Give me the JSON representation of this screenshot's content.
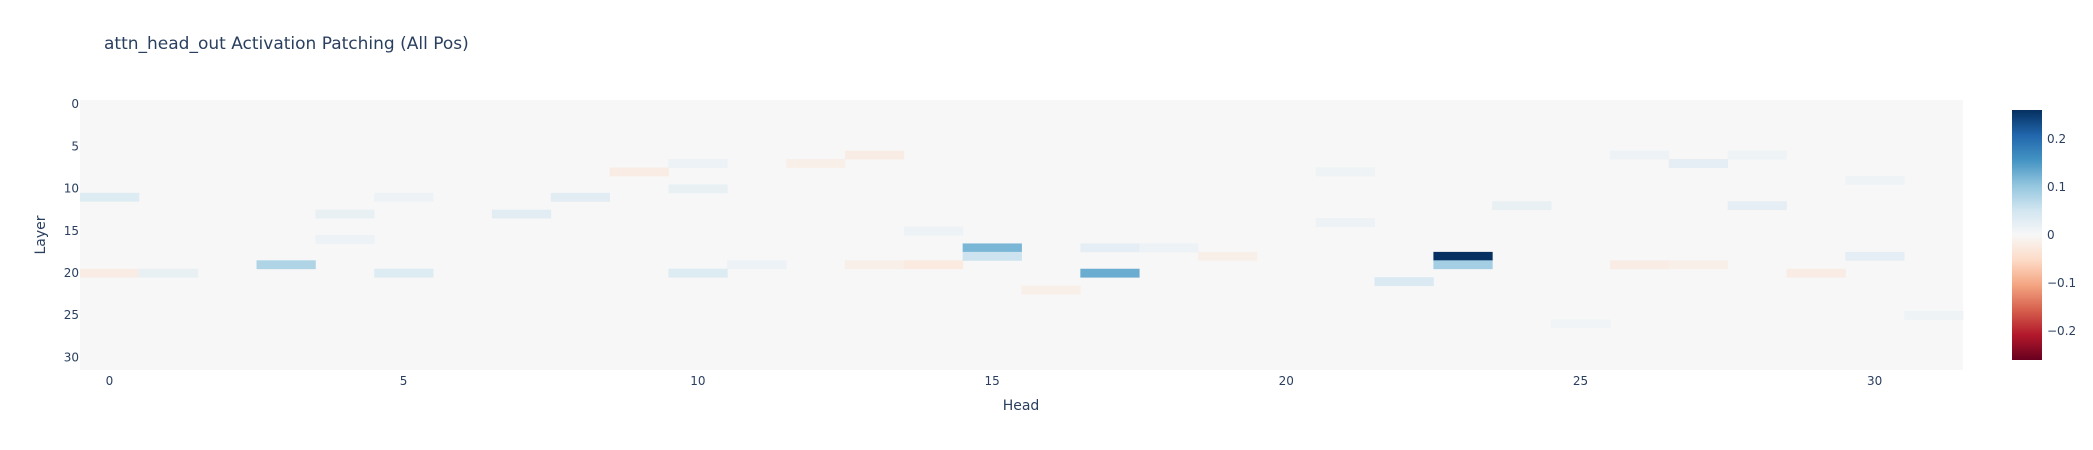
{
  "chart_data": {
    "type": "heatmap",
    "title": "attn_head_out Activation Patching (All Pos)",
    "xlabel": "Head",
    "ylabel": "Layer",
    "x_range": [
      -0.5,
      31.5
    ],
    "y_range": [
      -0.5,
      31.5
    ],
    "y_reversed": true,
    "x_ticks": [
      0,
      5,
      10,
      15,
      20,
      25,
      30
    ],
    "y_ticks": [
      0,
      5,
      10,
      15,
      20,
      25,
      30
    ],
    "colorscale": "RdBu",
    "zmin": -0.26,
    "zmax": 0.26,
    "colorbar_ticks": [
      0.2,
      0.1,
      0,
      -0.1,
      -0.2
    ],
    "colorbar_tick_labels": [
      "0.2",
      "0.1",
      "0",
      "−0.1",
      "−0.2"
    ],
    "grid": false,
    "n_layers": 32,
    "n_heads": 32,
    "cells": [
      {
        "layer": 11,
        "head": 0,
        "value": 0.035
      },
      {
        "layer": 20,
        "head": 0,
        "value": -0.02
      },
      {
        "layer": 20,
        "head": 1,
        "value": 0.02
      },
      {
        "layer": 19,
        "head": 3,
        "value": 0.08
      },
      {
        "layer": 13,
        "head": 4,
        "value": 0.02
      },
      {
        "layer": 16,
        "head": 4,
        "value": 0.015
      },
      {
        "layer": 11,
        "head": 5,
        "value": 0.015
      },
      {
        "layer": 20,
        "head": 5,
        "value": 0.035
      },
      {
        "layer": 13,
        "head": 7,
        "value": 0.03
      },
      {
        "layer": 11,
        "head": 8,
        "value": 0.03
      },
      {
        "layer": 8,
        "head": 9,
        "value": -0.02
      },
      {
        "layer": 20,
        "head": 10,
        "value": 0.035
      },
      {
        "layer": 10,
        "head": 10,
        "value": 0.02
      },
      {
        "layer": 7,
        "head": 10,
        "value": 0.015
      },
      {
        "layer": 19,
        "head": 11,
        "value": 0.015
      },
      {
        "layer": 7,
        "head": 12,
        "value": -0.015
      },
      {
        "layer": 6,
        "head": 13,
        "value": -0.02
      },
      {
        "layer": 19,
        "head": 13,
        "value": -0.015
      },
      {
        "layer": 19,
        "head": 14,
        "value": -0.025
      },
      {
        "layer": 15,
        "head": 14,
        "value": 0.015
      },
      {
        "layer": 17,
        "head": 15,
        "value": 0.12
      },
      {
        "layer": 18,
        "head": 15,
        "value": 0.055
      },
      {
        "layer": 22,
        "head": 16,
        "value": -0.015
      },
      {
        "layer": 17,
        "head": 17,
        "value": 0.025
      },
      {
        "layer": 20,
        "head": 17,
        "value": 0.13
      },
      {
        "layer": 17,
        "head": 18,
        "value": 0.015
      },
      {
        "layer": 18,
        "head": 19,
        "value": -0.015
      },
      {
        "layer": 8,
        "head": 21,
        "value": 0.012
      },
      {
        "layer": 14,
        "head": 21,
        "value": 0.015
      },
      {
        "layer": 21,
        "head": 22,
        "value": 0.04
      },
      {
        "layer": 18,
        "head": 23,
        "value": 0.26
      },
      {
        "layer": 19,
        "head": 23,
        "value": 0.09
      },
      {
        "layer": 12,
        "head": 24,
        "value": 0.02
      },
      {
        "layer": 26,
        "head": 25,
        "value": 0.01
      },
      {
        "layer": 6,
        "head": 26,
        "value": 0.015
      },
      {
        "layer": 19,
        "head": 26,
        "value": -0.02
      },
      {
        "layer": 7,
        "head": 27,
        "value": 0.025
      },
      {
        "layer": 19,
        "head": 27,
        "value": -0.015
      },
      {
        "layer": 12,
        "head": 28,
        "value": 0.025
      },
      {
        "layer": 6,
        "head": 28,
        "value": 0.012
      },
      {
        "layer": 20,
        "head": 29,
        "value": -0.02
      },
      {
        "layer": 18,
        "head": 30,
        "value": 0.025
      },
      {
        "layer": 9,
        "head": 30,
        "value": 0.012
      },
      {
        "layer": 25,
        "head": 31,
        "value": 0.012
      }
    ]
  }
}
